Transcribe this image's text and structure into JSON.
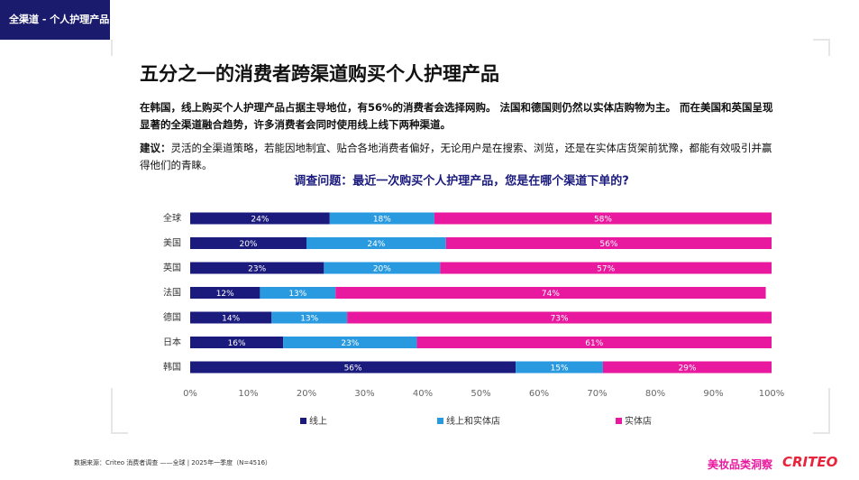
{
  "header": {
    "tag": "全渠道 - 个人护理产品",
    "title": "五分之一的消费者跨渠道购买个人护理产品",
    "summary": "在韩国，线上购买个人护理产品占据主导地位，有56%的消费者会选择网购。 法国和德国则仍然以实体店购物为主。 而在美国和英国呈现显著的全渠道融合趋势，许多消费者会同时使用线上线下两种渠道。",
    "suggestion_label": "建议：",
    "suggestion": "灵活的全渠道策略，若能因地制宜、贴合各地消费者偏好，无论用户是在搜索、浏览，还是在实体店货架前犹豫，都能有效吸引并赢得他们的青睐。"
  },
  "chart_data": {
    "type": "stacked-bar-horizontal",
    "title": "调查问题：最近一次购买个人护理产品，您是在哪个渠道下单的?",
    "categories": [
      "全球",
      "美国",
      "英国",
      "法国",
      "德国",
      "日本",
      "韩国"
    ],
    "series": [
      {
        "name": "线上",
        "color": "#1b1b7e",
        "values": [
          24,
          20,
          23,
          12,
          14,
          16,
          56
        ],
        "value_labels": [
          "24%",
          "20%",
          "23%",
          "12%",
          "14%",
          "16%",
          "56%"
        ]
      },
      {
        "name": "线上和实体店",
        "color": "#2a9ae0",
        "values": [
          18,
          24,
          20,
          13,
          13,
          23,
          15
        ],
        "value_labels": [
          "18%",
          "24%",
          "20%",
          "13%",
          "13%",
          "23%",
          "15%"
        ]
      },
      {
        "name": "实体店",
        "color": "#e8199e",
        "values": [
          58,
          56,
          57,
          74,
          73,
          61,
          29
        ],
        "value_labels": [
          "58%",
          "56%",
          "57%",
          "74%",
          "73%",
          "61%",
          "29%"
        ]
      }
    ],
    "xlim": [
      0,
      100
    ],
    "xticks": [
      {
        "value": 0,
        "label": "0%"
      },
      {
        "value": 10,
        "label": "10%"
      },
      {
        "value": 20,
        "label": "20%"
      },
      {
        "value": 30,
        "label": "30%"
      },
      {
        "value": 40,
        "label": "40%"
      },
      {
        "value": 50,
        "label": "50%"
      },
      {
        "value": 60,
        "label": "60%"
      },
      {
        "value": 70,
        "label": "70%"
      },
      {
        "value": 80,
        "label": "80%"
      },
      {
        "value": 90,
        "label": "90%"
      },
      {
        "value": 100,
        "label": "100%"
      }
    ],
    "legend": "bottom"
  },
  "footer": {
    "source": "数据来源：Criteo 消费者调查 ——全球 | 2025年一季度（N=4516）",
    "brand": "美妆品类洞察",
    "logo": "CRITEO"
  }
}
